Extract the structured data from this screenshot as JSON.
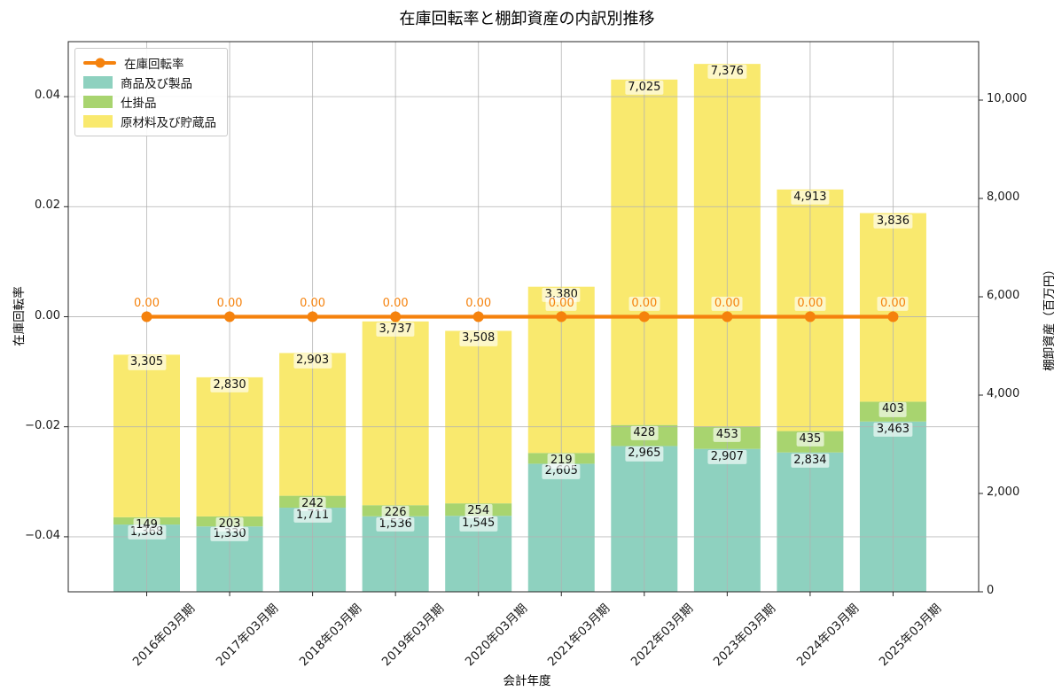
{
  "chart_data": {
    "type": "combo",
    "title": "在庫回転率と棚卸資産の内訳別推移",
    "xlabel": "会計年度",
    "ylabel_left": "在庫回転率",
    "ylabel_right": "棚卸資産（百万円）",
    "categories": [
      "2016年03月期",
      "2017年03月期",
      "2018年03月期",
      "2019年03月期",
      "2020年03月期",
      "2021年03月期",
      "2022年03月期",
      "2023年03月期",
      "2024年03月期",
      "2025年03月期"
    ],
    "bar_series": [
      {
        "name": "商品及び製品",
        "color": "#8ed1bf",
        "values": [
          1368,
          1330,
          1711,
          1536,
          1545,
          2605,
          2965,
          2907,
          2834,
          3463
        ]
      },
      {
        "name": "仕掛品",
        "color": "#a8d46f",
        "values": [
          149,
          203,
          242,
          226,
          254,
          219,
          428,
          453,
          435,
          403
        ]
      },
      {
        "name": "原材料及び貯蔵品",
        "color": "#f9e96e",
        "values": [
          3305,
          2830,
          2903,
          3737,
          3508,
          3380,
          7025,
          7376,
          4913,
          3836
        ]
      }
    ],
    "line_series": {
      "name": "在庫回転率",
      "color": "#f5820d",
      "axis": "left",
      "values": [
        0,
        0,
        0,
        0,
        0,
        0,
        0,
        0,
        0,
        0
      ],
      "point_labels": [
        "0.00",
        "0.00",
        "0.00",
        "0.00",
        "0.00",
        "0.00",
        "0.00",
        "0.00",
        "0.00",
        "0.00"
      ]
    },
    "y_left": {
      "tick_values": [
        0.04,
        0.02,
        0.0,
        -0.02,
        -0.04
      ],
      "tick_labels": [
        "0.04",
        "0.02",
        "0.00",
        "−0.02",
        "−0.04"
      ],
      "range": [
        -0.05,
        0.05
      ]
    },
    "y_right": {
      "tick_values": [
        0,
        2000,
        4000,
        6000,
        8000,
        10000
      ],
      "tick_labels": [
        "0",
        "2,000",
        "4,000",
        "6,000",
        "8,000",
        "10,000"
      ],
      "range": [
        0,
        11189
      ]
    },
    "grid": true,
    "grid_color": "#b2b2b2",
    "legend_position": "upper left",
    "stacked": true
  }
}
